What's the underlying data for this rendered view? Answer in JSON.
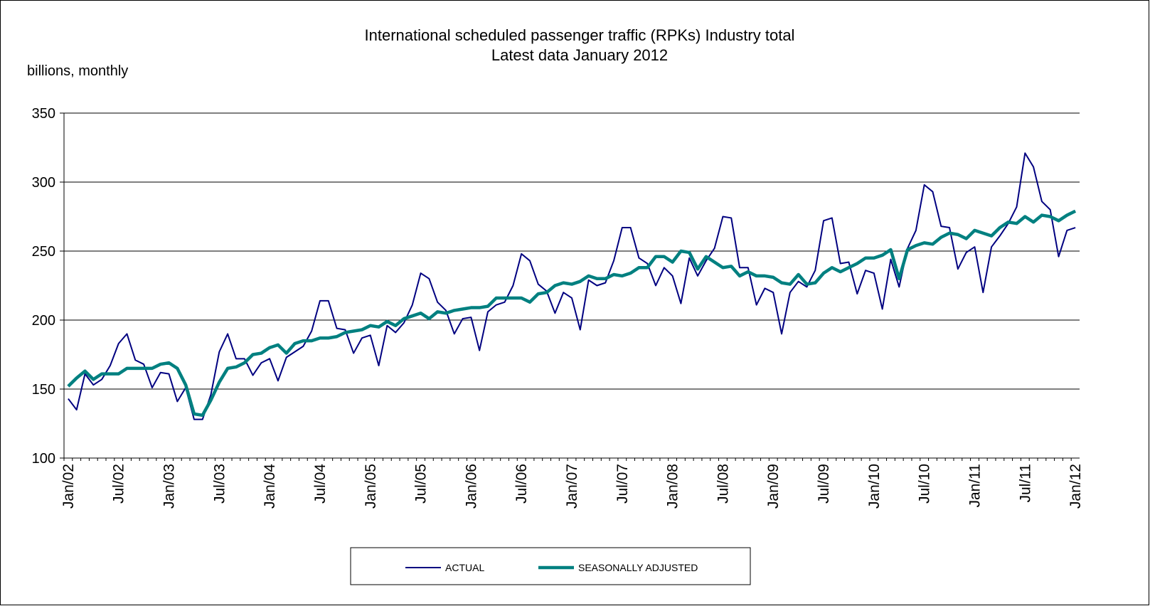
{
  "chart_data": {
    "type": "line",
    "title": "International scheduled passenger traffic (RPKs) Industry total",
    "subtitle": "Latest data January 2012",
    "y_label": "billions, monthly",
    "categories": [
      "Jan/02",
      null,
      null,
      null,
      null,
      null,
      "Jul/02",
      null,
      null,
      null,
      null,
      null,
      "Jan/03",
      null,
      null,
      null,
      null,
      null,
      "Jul/03",
      null,
      null,
      null,
      null,
      null,
      "Jan/04",
      null,
      null,
      null,
      null,
      null,
      "Jul/04",
      null,
      null,
      null,
      null,
      null,
      "Jan/05",
      null,
      null,
      null,
      null,
      null,
      "Jul/05",
      null,
      null,
      null,
      null,
      null,
      "Jan/06",
      null,
      null,
      null,
      null,
      null,
      "Jul/06",
      null,
      null,
      null,
      null,
      null,
      "Jan/07",
      null,
      null,
      null,
      null,
      null,
      "Jul/07",
      null,
      null,
      null,
      null,
      null,
      "Jan/08",
      null,
      null,
      null,
      null,
      null,
      "Jul/08",
      null,
      null,
      null,
      null,
      null,
      "Jan/09",
      null,
      null,
      null,
      null,
      null,
      "Jul/09",
      null,
      null,
      null,
      null,
      null,
      "Jan/10",
      null,
      null,
      null,
      null,
      null,
      "Jul/10",
      null,
      null,
      null,
      null,
      null,
      "Jan/11",
      null,
      null,
      null,
      null,
      null,
      "Jul/11",
      null,
      null,
      null,
      null,
      null,
      "Jan/12"
    ],
    "series": [
      {
        "name": "ACTUAL",
        "color": "#000080",
        "values": [
          143,
          135,
          161,
          153,
          157,
          167,
          183,
          190,
          171,
          168,
          151,
          162,
          161,
          141,
          151,
          128,
          128,
          146,
          177,
          190,
          172,
          172,
          160,
          169,
          172,
          156,
          173,
          177,
          181,
          192,
          214,
          214,
          194,
          193,
          176,
          187,
          189,
          167,
          196,
          191,
          198,
          211,
          234,
          230,
          213,
          207,
          190,
          201,
          202,
          178,
          206,
          211,
          213,
          225,
          248,
          243,
          226,
          221,
          205,
          220,
          216,
          193,
          229,
          225,
          227,
          243,
          267,
          267,
          245,
          241,
          225,
          238,
          232,
          212,
          245,
          232,
          243,
          252,
          275,
          274,
          238,
          238,
          211,
          223,
          220,
          190,
          220,
          228,
          224,
          236,
          272,
          274,
          241,
          242,
          219,
          236,
          234,
          208,
          244,
          224,
          252,
          265,
          298,
          293,
          268,
          267,
          237,
          249,
          253,
          220,
          253,
          261,
          270,
          282,
          321,
          311,
          286,
          280,
          246,
          265,
          267
        ]
      },
      {
        "name": "SEASONALLY ADJUSTED",
        "color": "#008080",
        "values": [
          152,
          158,
          163,
          157,
          161,
          161,
          161,
          165,
          165,
          165,
          165,
          168,
          169,
          165,
          153,
          132,
          131,
          142,
          155,
          165,
          166,
          169,
          175,
          176,
          180,
          182,
          176,
          183,
          185,
          185,
          187,
          187,
          188,
          191,
          192,
          193,
          196,
          195,
          199,
          196,
          201,
          203,
          205,
          201,
          206,
          205,
          207,
          208,
          209,
          209,
          210,
          216,
          216,
          216,
          216,
          213,
          219,
          220,
          225,
          227,
          226,
          228,
          232,
          230,
          230,
          233,
          232,
          234,
          238,
          238,
          246,
          246,
          242,
          250,
          249,
          237,
          246,
          242,
          238,
          239,
          232,
          235,
          232,
          232,
          231,
          227,
          226,
          233,
          226,
          227,
          234,
          238,
          235,
          238,
          241,
          245,
          245,
          247,
          251,
          230,
          251,
          254,
          256,
          255,
          260,
          263,
          262,
          259,
          265,
          263,
          261,
          267,
          271,
          270,
          275,
          271,
          276,
          275,
          272,
          276,
          279
        ]
      }
    ],
    "ylim": [
      100,
      350
    ],
    "yticks": [
      100,
      150,
      200,
      250,
      300,
      350
    ],
    "grid": true,
    "legend": "bottom"
  }
}
